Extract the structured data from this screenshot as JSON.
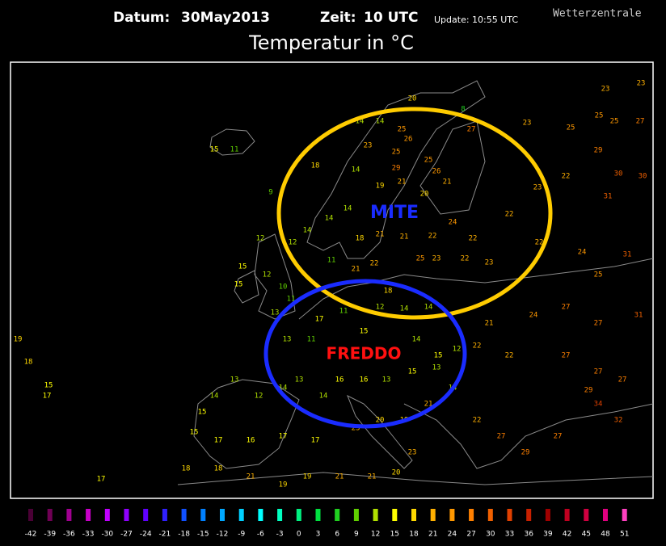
{
  "header": {
    "date_label": "Datum:",
    "date": "30May2013",
    "time_label": "Zeit:",
    "time": "10 UTC",
    "update": "Update: 10:55 UTC",
    "source": "Wetterzentrale",
    "title": "Temperatur in °C"
  },
  "annotations": {
    "warm": "MITE",
    "cold": "FREDDO"
  },
  "scale": [
    {
      "value": -42,
      "color": "#4a0035"
    },
    {
      "value": -39,
      "color": "#700055"
    },
    {
      "value": -36,
      "color": "#a00090"
    },
    {
      "value": -33,
      "color": "#c800c8"
    },
    {
      "value": -30,
      "color": "#c000ff"
    },
    {
      "value": -27,
      "color": "#9000ff"
    },
    {
      "value": -24,
      "color": "#6000ff"
    },
    {
      "value": -21,
      "color": "#3020ff"
    },
    {
      "value": -18,
      "color": "#1050ff"
    },
    {
      "value": -15,
      "color": "#0080ff"
    },
    {
      "value": -12,
      "color": "#00a8ff"
    },
    {
      "value": -9,
      "color": "#00d0ff"
    },
    {
      "value": -6,
      "color": "#00ffff"
    },
    {
      "value": -3,
      "color": "#00ffc0"
    },
    {
      "value": 0,
      "color": "#00f080"
    },
    {
      "value": 3,
      "color": "#00e040"
    },
    {
      "value": 6,
      "color": "#20d020"
    },
    {
      "value": 9,
      "color": "#60d000"
    },
    {
      "value": 12,
      "color": "#b0e000"
    },
    {
      "value": 15,
      "color": "#ffff00"
    },
    {
      "value": 18,
      "color": "#ffd800"
    },
    {
      "value": 21,
      "color": "#ffb000"
    },
    {
      "value": 24,
      "color": "#ff9800"
    },
    {
      "value": 27,
      "color": "#ff8000"
    },
    {
      "value": 30,
      "color": "#f06000"
    },
    {
      "value": 33,
      "color": "#e04000"
    },
    {
      "value": 36,
      "color": "#c82000"
    },
    {
      "value": 39,
      "color": "#a00000"
    },
    {
      "value": 42,
      "color": "#c00020"
    },
    {
      "value": 45,
      "color": "#d00040"
    },
    {
      "value": 48,
      "color": "#e00080"
    },
    {
      "value": 51,
      "color": "#ff40c0"
    }
  ],
  "stations": [
    23,
    23,
    25,
    27,
    25,
    25,
    23,
    27,
    20,
    25,
    14,
    26,
    25,
    23,
    29,
    25,
    26,
    21,
    20,
    21,
    19,
    14,
    18,
    14,
    14,
    14,
    12,
    12,
    11,
    18,
    21,
    21,
    22,
    24,
    22,
    22,
    23,
    22,
    22,
    29,
    31,
    30,
    30,
    31,
    24,
    25,
    23,
    22,
    23,
    25,
    22,
    21,
    18,
    14,
    14,
    12,
    11,
    17,
    13,
    13,
    11,
    15,
    14,
    15,
    12,
    22,
    22,
    21,
    24,
    27,
    27,
    31,
    27,
    27,
    27,
    29,
    34,
    32,
    27,
    29,
    27,
    22,
    14,
    13,
    15,
    13,
    16,
    16,
    14,
    13,
    14,
    12,
    13,
    14,
    15,
    15,
    17,
    16,
    17,
    17,
    23,
    20,
    19,
    21,
    23,
    20,
    21,
    21,
    19,
    19,
    21,
    18,
    18,
    17,
    15,
    17,
    19,
    18,
    15,
    15,
    12,
    10,
    11,
    11,
    15,
    9,
    14,
    8
  ]
}
